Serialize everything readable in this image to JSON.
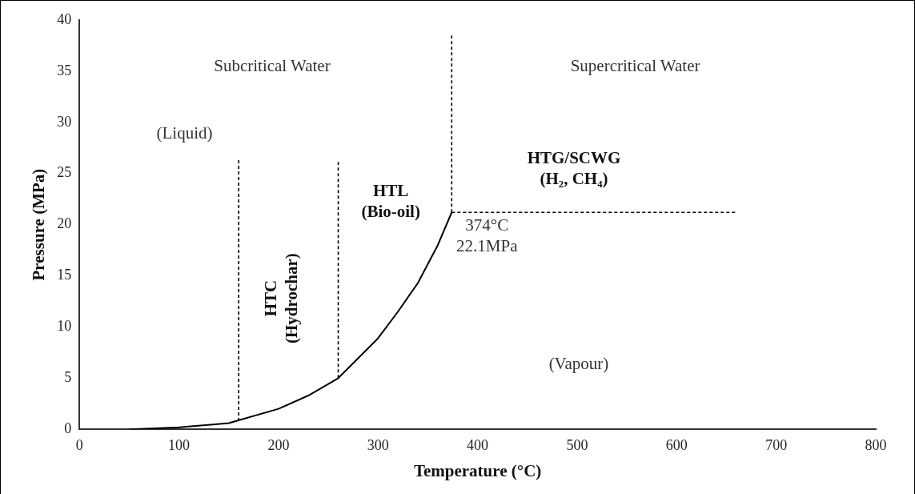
{
  "chart_data": {
    "type": "line",
    "xlabel": "Temperature (°C)",
    "ylabel": "Pressure (MPa)",
    "xlim": [
      0,
      800
    ],
    "xticks": [
      0,
      100,
      200,
      300,
      400,
      500,
      600,
      700,
      800
    ],
    "ylim": [
      0,
      40
    ],
    "yticks": [
      0,
      5,
      10,
      15,
      20,
      25,
      30,
      35,
      40
    ],
    "grid": false,
    "legend": false,
    "marker": "none",
    "series": [
      {
        "type": "line",
        "color": "#000000",
        "line_style": "solid",
        "x": [
          50,
          100,
          150,
          200,
          230,
          260,
          300,
          320,
          340,
          360,
          374
        ],
        "values": [
          0,
          0.2,
          0.6,
          2,
          3.3,
          5,
          8.9,
          11.5,
          14.3,
          18,
          21.2
        ]
      },
      {
        "type": "line",
        "color": "#000000",
        "line_style": "dashed",
        "x": [
          160,
          160
        ],
        "values": [
          0.8,
          26.3
        ]
      },
      {
        "type": "line",
        "color": "#000000",
        "line_style": "dashed",
        "x": [
          260,
          260
        ],
        "values": [
          5,
          26.3
        ]
      },
      {
        "type": "line",
        "color": "#000000",
        "line_style": "dashed",
        "x": [
          374,
          374
        ],
        "values": [
          21.2,
          38.6
        ]
      },
      {
        "type": "line",
        "color": "#000000",
        "line_style": "dashed",
        "x": [
          374,
          660
        ],
        "values": [
          21.2,
          21.2
        ]
      }
    ],
    "annotations": [
      "Subcritical Water",
      "Supercritical Water",
      "(Liquid)",
      "HTC\n(Hydrochar)",
      "HTL\n(Bio-oil)",
      "HTG/SCWG\n(H₂, CH₄)",
      {
        "text": "374°C\n22.1MPa",
        "x": 374,
        "y": 21.2
      },
      "(Vapour)"
    ]
  }
}
